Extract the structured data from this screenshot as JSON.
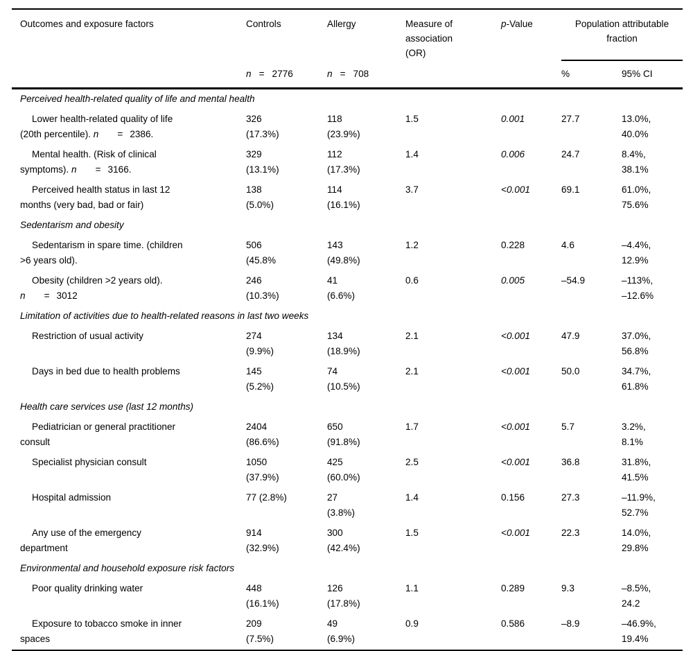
{
  "header": {
    "outcomes": "Outcomes and exposure factors",
    "controls": "Controls",
    "allergy": "Allergy",
    "measure": "Measure of association (OR)",
    "p_prefix": "p",
    "p_rest": "-Value",
    "paf": "Population attributable fraction",
    "pct": "%",
    "ci": "95% CI",
    "controls_n": {
      "sym": "n",
      "eq": "=",
      "val": "2776"
    },
    "allergy_n": {
      "sym": "n",
      "eq": "=",
      "val": "708"
    }
  },
  "rows": [
    {
      "type": "section",
      "label": "Perceived health-related quality of life and mental health"
    },
    {
      "type": "outcome",
      "label_lines": [
        "Lower health-related quality of life",
        "(20th percentile). n = 2386."
      ],
      "controls": [
        "326",
        "(17.3%)"
      ],
      "allergy": [
        "118",
        "(23.9%)"
      ],
      "or": "1.5",
      "p": "0.001",
      "p_italic": true,
      "paf": "27.7",
      "ci": [
        "13.0%,",
        "40.0%"
      ]
    },
    {
      "type": "outcome",
      "label_lines": [
        "Mental health. (Risk of clinical",
        "symptoms). n = 3166."
      ],
      "controls": [
        "329",
        "(13.1%)"
      ],
      "allergy": [
        "112",
        "(17.3%)"
      ],
      "or": "1.4",
      "p": "0.006",
      "p_italic": true,
      "paf": "24.7",
      "ci": [
        "8.4%,",
        "38.1%"
      ]
    },
    {
      "type": "outcome",
      "label_lines": [
        "Perceived health status in last 12",
        "months (very bad, bad or fair)"
      ],
      "controls": [
        "138",
        "(5.0%)"
      ],
      "allergy": [
        "114",
        "(16.1%)"
      ],
      "or": "3.7",
      "p": "<0.001",
      "p_italic": true,
      "paf": "69.1",
      "ci": [
        "61.0%,",
        "75.6%"
      ]
    },
    {
      "type": "section",
      "label": "Sedentarism and obesity"
    },
    {
      "type": "outcome",
      "label_lines": [
        "Sedentarism in spare time. (children",
        ">6 years old)."
      ],
      "controls": [
        "506",
        "(45.8%"
      ],
      "allergy": [
        "143",
        "(49.8%)"
      ],
      "or": "1.2",
      "p": "0.228",
      "p_italic": false,
      "paf": "4.6",
      "ci": [
        "–4.4%,",
        "12.9%"
      ]
    },
    {
      "type": "outcome",
      "label_lines": [
        "Obesity (children >2 years old).",
        "n = 3012"
      ],
      "controls": [
        "246",
        "(10.3%)"
      ],
      "allergy": [
        "41",
        "(6.6%)"
      ],
      "or": "0.6",
      "p": "0.005",
      "p_italic": true,
      "paf": "–54.9",
      "ci": [
        "–113%,",
        "–12.6%"
      ]
    },
    {
      "type": "section",
      "label": "Limitation of activities due to health-related reasons in last two weeks"
    },
    {
      "type": "outcome",
      "label_lines": [
        "Restriction of usual activity"
      ],
      "controls": [
        "274",
        "(9.9%)"
      ],
      "allergy": [
        "134",
        "(18.9%)"
      ],
      "or": "2.1",
      "p": "<0.001",
      "p_italic": true,
      "paf": "47.9",
      "ci": [
        "37.0%,",
        "56.8%"
      ]
    },
    {
      "type": "outcome",
      "label_lines": [
        "Days in bed due to health problems"
      ],
      "controls": [
        "145",
        "(5.2%)"
      ],
      "allergy": [
        "74",
        "(10.5%)"
      ],
      "or": "2.1",
      "p": "<0.001",
      "p_italic": true,
      "paf": "50.0",
      "ci": [
        "34.7%,",
        "61.8%"
      ]
    },
    {
      "type": "section",
      "label": "Health care services use (last 12 months)"
    },
    {
      "type": "outcome",
      "label_lines": [
        "Pediatrician or general practitioner",
        "consult"
      ],
      "controls": [
        "2404",
        "(86.6%)"
      ],
      "allergy": [
        "650",
        "(91.8%)"
      ],
      "or": "1.7",
      "p": "<0.001",
      "p_italic": true,
      "paf": "5.7",
      "ci": [
        "3.2%,",
        "8.1%"
      ]
    },
    {
      "type": "outcome",
      "label_lines": [
        "Specialist physician consult"
      ],
      "controls": [
        "1050",
        "(37.9%)"
      ],
      "allergy": [
        "425",
        "(60.0%)"
      ],
      "or": "2.5",
      "p": "<0.001",
      "p_italic": true,
      "paf": "36.8",
      "ci": [
        "31.8%,",
        "41.5%"
      ]
    },
    {
      "type": "outcome",
      "label_lines": [
        "Hospital admission"
      ],
      "controls": [
        "77 (2.8%)"
      ],
      "allergy": [
        "27",
        "(3.8%)"
      ],
      "or": "1.4",
      "p": "0.156",
      "p_italic": false,
      "paf": "27.3",
      "ci": [
        "–11.9%,",
        "52.7%"
      ]
    },
    {
      "type": "outcome",
      "label_lines": [
        "Any use of the emergency",
        "department"
      ],
      "controls": [
        "914",
        "(32.9%)"
      ],
      "allergy": [
        "300",
        "(42.4%)"
      ],
      "or": "1.5",
      "p": "<0.001",
      "p_italic": true,
      "paf": "22.3",
      "ci": [
        "14.0%,",
        "29.8%"
      ]
    },
    {
      "type": "section",
      "label": "Environmental and household exposure risk factors"
    },
    {
      "type": "outcome",
      "label_lines": [
        "Poor quality drinking water"
      ],
      "controls": [
        "448",
        "(16.1%)"
      ],
      "allergy": [
        "126",
        "(17.8%)"
      ],
      "or": "1.1",
      "p": "0.289",
      "p_italic": false,
      "paf": "9.3",
      "ci": [
        "–8.5%,",
        "24.2"
      ]
    },
    {
      "type": "outcome",
      "label_lines": [
        "Exposure to tobacco smoke in inner",
        "spaces"
      ],
      "controls": [
        "209",
        "(7.5%)"
      ],
      "allergy": [
        "49",
        "(6.9%)"
      ],
      "or": "0.9",
      "p": "0.586",
      "p_italic": false,
      "paf": "–8.9",
      "ci": [
        "–46.9%,",
        "19.4%"
      ]
    }
  ]
}
